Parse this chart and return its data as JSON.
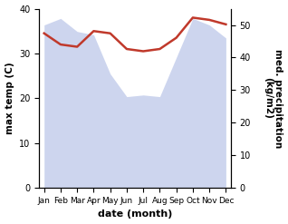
{
  "months": [
    "Jan",
    "Feb",
    "Mar",
    "Apr",
    "May",
    "Jun",
    "Jul",
    "Aug",
    "Sep",
    "Oct",
    "Nov",
    "Dec"
  ],
  "max_temp": [
    34.5,
    32.0,
    31.5,
    35.0,
    34.5,
    31.0,
    30.5,
    31.0,
    33.5,
    38.0,
    37.5,
    36.5
  ],
  "precipitation": [
    50.0,
    52.0,
    48.0,
    47.0,
    35.0,
    28.0,
    28.5,
    28.0,
    40.0,
    52.0,
    50.0,
    46.0
  ],
  "temp_color": "#c0392b",
  "precip_fill_color": "#b8c4e8",
  "precip_fill_alpha": 0.7,
  "xlabel": "date (month)",
  "ylabel_left": "max temp (C)",
  "ylabel_right": "med. precipitation\n(kg/m2)",
  "ylim_left": [
    0,
    40
  ],
  "ylim_right": [
    0,
    55
  ],
  "yticks_left": [
    0,
    10,
    20,
    30,
    40
  ],
  "yticks_right": [
    0,
    10,
    20,
    30,
    40,
    50
  ],
  "bg_color": "#ffffff"
}
